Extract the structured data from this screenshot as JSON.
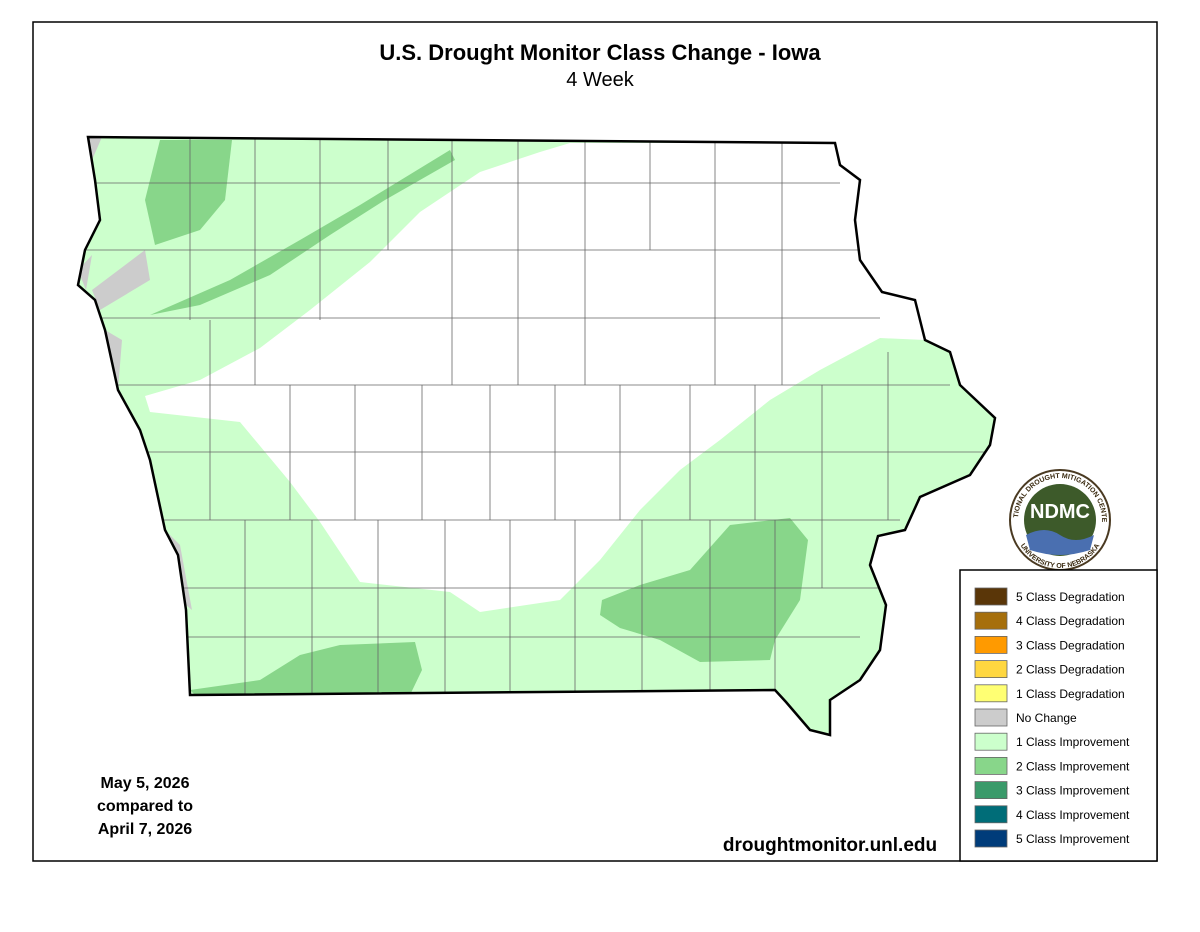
{
  "title": "U.S. Drought Monitor Class Change - Iowa",
  "subtitle": "4 Week",
  "dates": {
    "current": "May 5, 2026",
    "compared": "compared to",
    "previous": "April 7, 2026"
  },
  "source": "droughtmonitor.unl.edu",
  "logo": {
    "abbr": "NDMC",
    "top": "NATIONAL DROUGHT MITIGATION CENTER",
    "bottom": "UNIVERSITY OF NEBRASKA"
  },
  "legend": [
    {
      "label": "5 Class Degradation",
      "color": "#5a3608"
    },
    {
      "label": "4 Class Degradation",
      "color": "#a66f0c"
    },
    {
      "label": "3 Class Degradation",
      "color": "#ff9a00"
    },
    {
      "label": "2 Class Degradation",
      "color": "#ffd740"
    },
    {
      "label": "1 Class Degradation",
      "color": "#ffff73"
    },
    {
      "label": "No Change",
      "color": "#cccccc"
    },
    {
      "label": "1 Class Improvement",
      "color": "#ccffcc"
    },
    {
      "label": "2 Class Improvement",
      "color": "#88d68a"
    },
    {
      "label": "3 Class Improvement",
      "color": "#3a9a6a"
    },
    {
      "label": "4 Class Improvement",
      "color": "#006d78"
    },
    {
      "label": "5 Class Improvement",
      "color": "#003c7a"
    }
  ]
}
